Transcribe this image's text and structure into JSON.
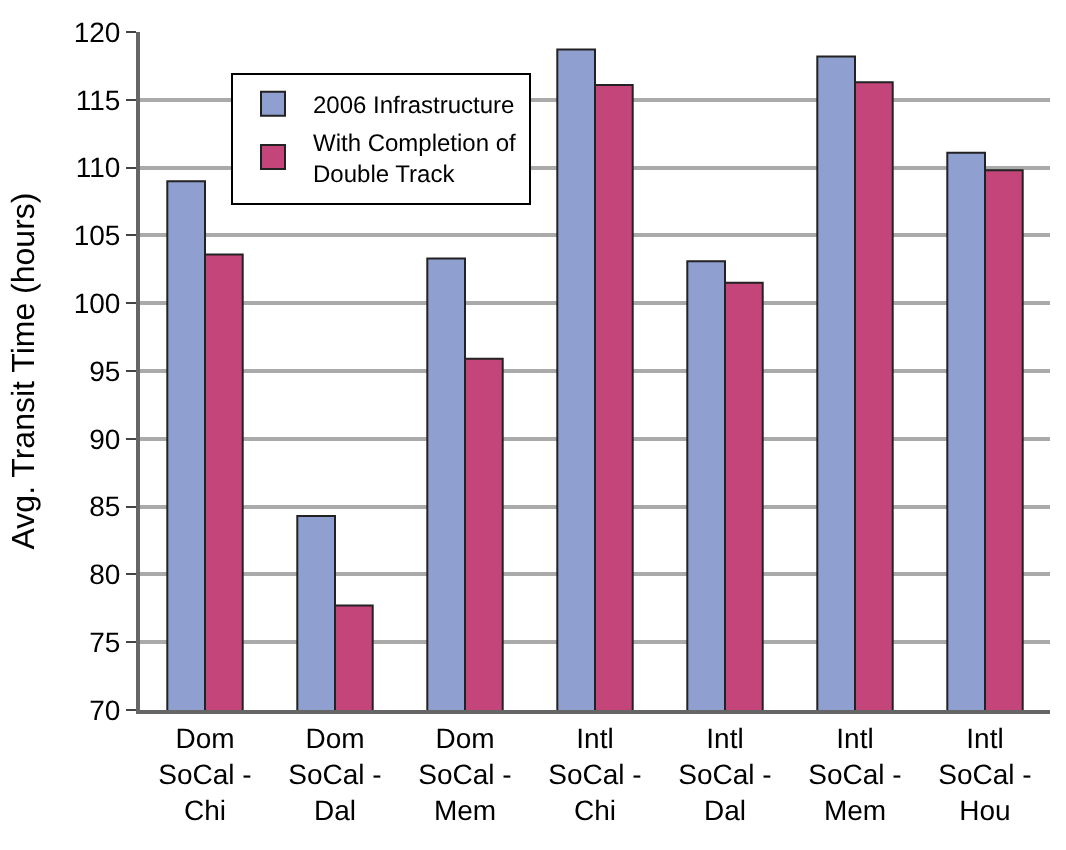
{
  "chart_data": {
    "type": "bar",
    "ylabel": "Avg. Transit Time (hours)",
    "categories": [
      "Dom SoCal - Chi",
      "Dom SoCal - Dal",
      "Dom SoCal - Mem",
      "Intl SoCal - Chi",
      "Intl SoCal - Dal",
      "Intl SoCal - Mem",
      "Intl SoCal - Hou"
    ],
    "series": [
      {
        "name": "2006 Infrastructure",
        "color": "#8f9fcf",
        "values": [
          109.0,
          84.3,
          103.3,
          118.7,
          103.1,
          118.2,
          111.1
        ]
      },
      {
        "name": "With Completion of Double Track",
        "color": "#c4457a",
        "values": [
          103.6,
          77.7,
          95.9,
          116.1,
          101.5,
          116.3,
          109.8
        ]
      }
    ],
    "ylim": [
      70,
      120
    ],
    "yticks": [
      70,
      75,
      80,
      85,
      90,
      95,
      100,
      105,
      110,
      115,
      120
    ],
    "grid": "y",
    "legend": "top left"
  }
}
